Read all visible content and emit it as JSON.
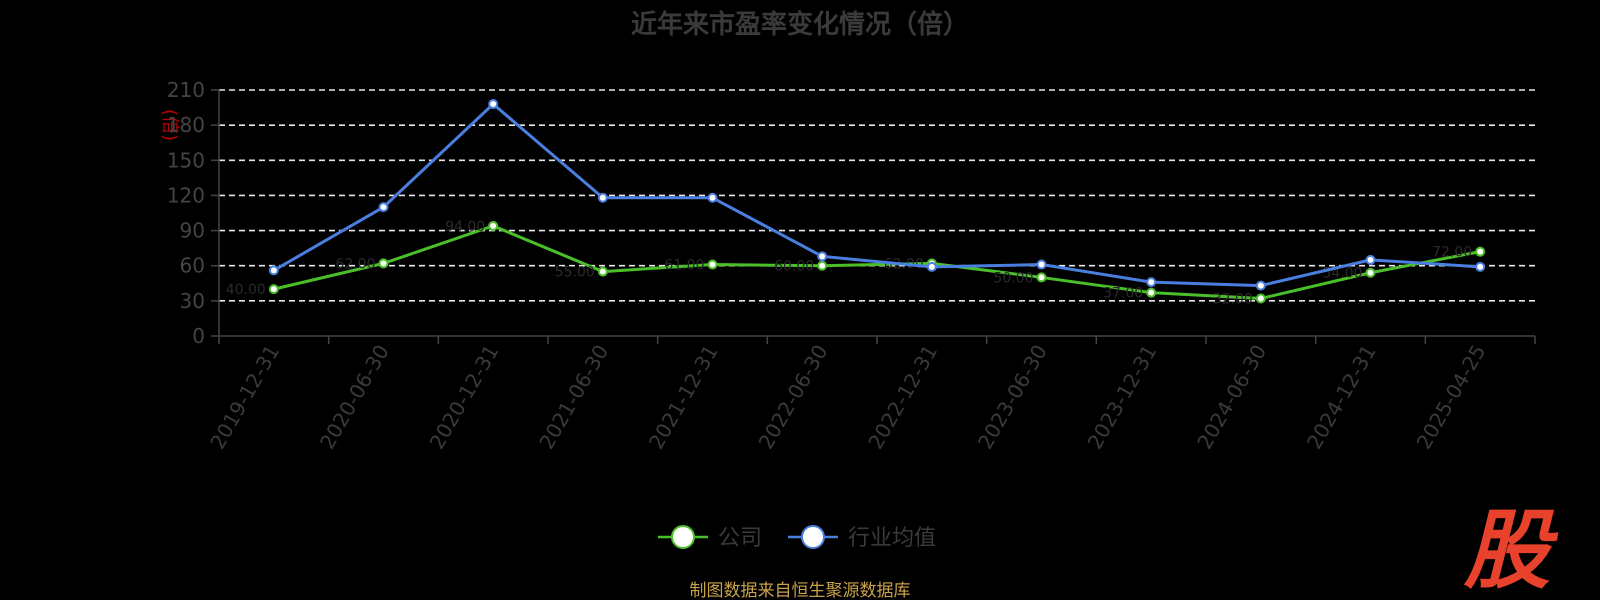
{
  "chart_data": {
    "type": "line",
    "title": "近年来市盈率变化情况（倍）",
    "ylabel": "(倍)",
    "ylim": [
      0,
      210
    ],
    "yticks": [
      0,
      30,
      60,
      90,
      120,
      150,
      180,
      210
    ],
    "grid": true,
    "legend_position": "bottom",
    "categories": [
      "2019-12-31",
      "2020-06-30",
      "2020-12-31",
      "2021-06-30",
      "2021-12-31",
      "2022-06-30",
      "2022-12-31",
      "2023-06-30",
      "2023-12-31",
      "2024-06-30",
      "2024-12-31",
      "2025-04-25"
    ],
    "series": [
      {
        "name": "公司",
        "color": "#4bbf2a",
        "values": [
          40,
          62,
          94,
          55,
          61,
          60,
          62,
          50,
          37,
          32,
          54,
          72
        ]
      },
      {
        "name": "行业均值",
        "color": "#4a7fe0",
        "values": [
          56,
          110,
          198,
          118,
          118,
          68,
          59,
          61,
          46,
          43,
          65,
          59
        ]
      }
    ]
  },
  "footer": {
    "source": "制图数据来自恒生聚源数据库",
    "logo": "股"
  }
}
